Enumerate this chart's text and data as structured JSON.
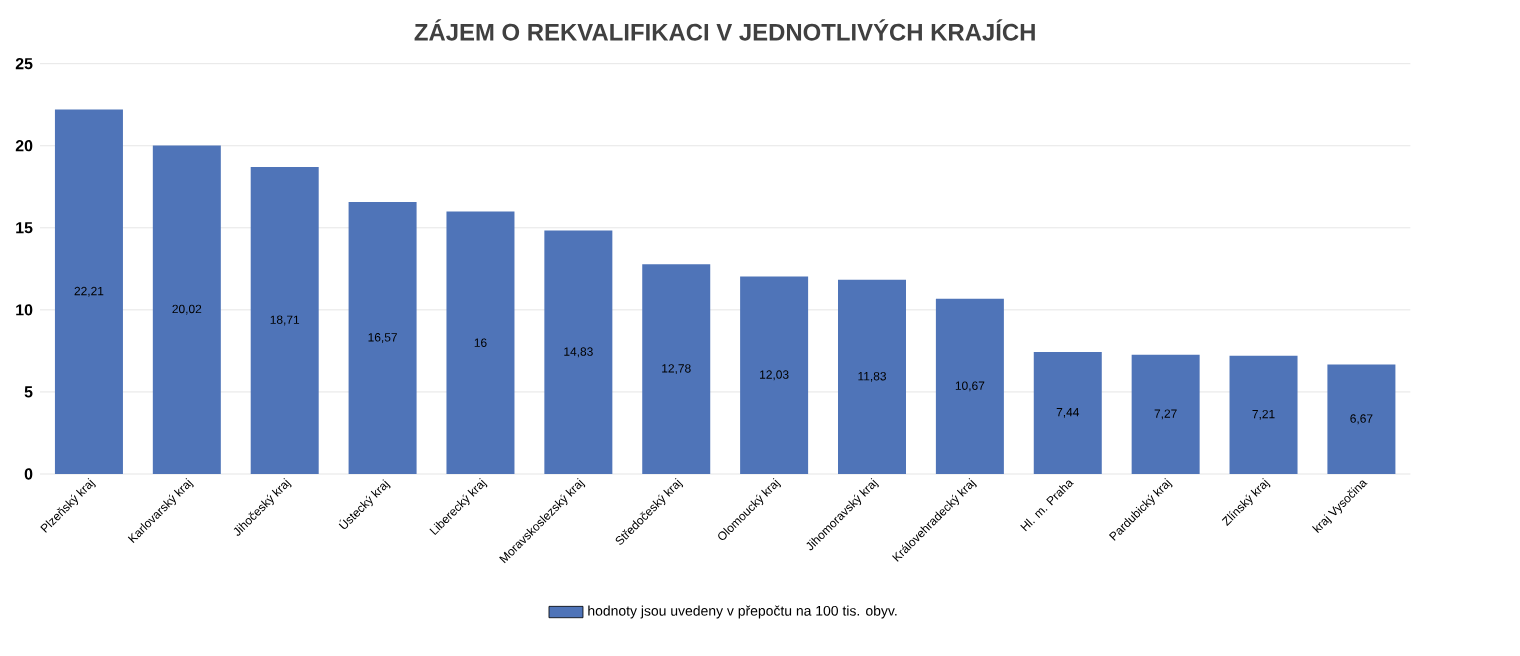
{
  "chart_data": {
    "type": "bar",
    "title": "ZÁJEM O REKVALIFIKACI V JEDNOTLIVÝCH KRAJÍCH",
    "categories": [
      "Plzeňský kraj",
      "Karlovarský kraj",
      "Jihočeský kraj",
      "Ústecký kraj",
      "Liberecký kraj",
      "Moravskoslezský kraj",
      "Středočeský kraj",
      "Olomoucký kraj",
      "Jihomoravský kraj",
      "Královehradecký kraj",
      "Hl. m. Praha",
      "Pardubický kraj",
      "Zlínský kraj",
      "kraj Vysočina"
    ],
    "series": [
      {
        "name": "hodnoty jsou uvedeny v přepočtu na 100 tis. obyv.",
        "color": "#4f74b8",
        "values": [
          22.21,
          20.02,
          18.71,
          16.57,
          16,
          14.83,
          12.78,
          12.03,
          11.83,
          10.67,
          7.44,
          7.27,
          7.21,
          6.67
        ]
      }
    ],
    "value_labels": [
      "22,21",
      "20,02",
      "18,71",
      "16,57",
      "16",
      "14,83",
      "12,78",
      "12,03",
      "11,83",
      "10,67",
      "7,44",
      "7,27",
      "7,21",
      "6,67"
    ],
    "ylim": [
      0,
      25
    ],
    "yticks": [
      0,
      5,
      10,
      15,
      20,
      25
    ],
    "grid": "y",
    "legend": "bottom"
  }
}
